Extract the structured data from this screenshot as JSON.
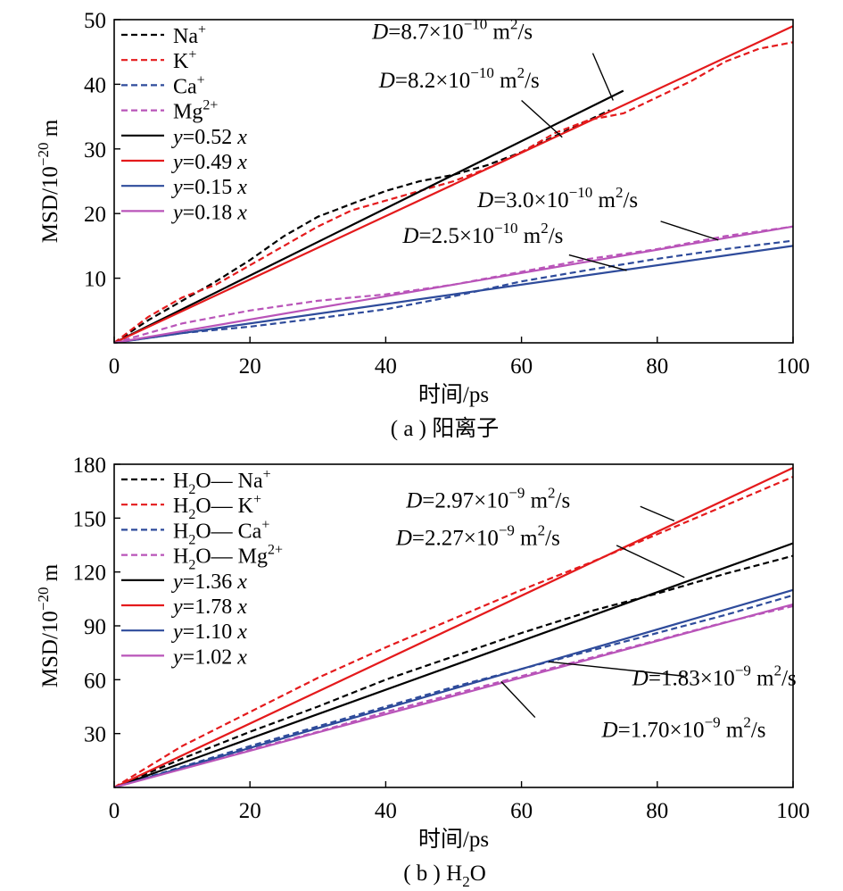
{
  "chart_data": [
    {
      "type": "line",
      "caption": "( a ) 阳离子",
      "xlabel": "时间/ps",
      "ylabel": "MSD/10−20 m",
      "ylabel_main": "MSD/10",
      "ylabel_sup": "−20",
      "ylabel_tail": " m",
      "xlim": [
        0,
        100
      ],
      "ylim": [
        0,
        50
      ],
      "xticks": [
        0,
        20,
        40,
        60,
        80,
        100
      ],
      "yticks": [
        10,
        20,
        30,
        40,
        50
      ],
      "legend_position": "top-left",
      "grid": false,
      "series": [
        {
          "name": "Na+",
          "base": "Na",
          "sup": "+",
          "style": "dashed",
          "color": "#000000",
          "x": [
            0,
            5,
            10,
            15,
            20,
            25,
            30,
            35,
            40,
            45,
            50,
            55,
            60,
            65,
            70,
            73
          ],
          "y": [
            0,
            3.5,
            6.5,
            9.5,
            12.8,
            16.5,
            19.5,
            21.5,
            23.5,
            25,
            26,
            27.5,
            29.5,
            32,
            34.5,
            36
          ]
        },
        {
          "name": "K+",
          "base": "K",
          "sup": "+",
          "style": "dashed",
          "color": "#e41a1c",
          "x": [
            0,
            5,
            10,
            15,
            20,
            25,
            30,
            35,
            40,
            45,
            50,
            55,
            60,
            65,
            70,
            75,
            80,
            85,
            90,
            95,
            100
          ],
          "y": [
            0,
            4,
            7,
            9,
            12,
            15,
            18,
            20.5,
            22,
            23.5,
            25,
            27,
            29.5,
            32.5,
            34.5,
            35.5,
            38,
            40.5,
            43.5,
            45.5,
            46.5
          ]
        },
        {
          "name": "Ca+",
          "base": "Ca",
          "sup": "+",
          "style": "dashed",
          "color": "#2e4b9b",
          "x": [
            0,
            10,
            20,
            30,
            40,
            50,
            60,
            70,
            80,
            90,
            100
          ],
          "y": [
            0,
            1.5,
            2.5,
            3.8,
            5.2,
            7.2,
            9.5,
            11.3,
            13,
            14.5,
            15.8
          ]
        },
        {
          "name": "Mg2+",
          "base": "Mg",
          "sup": "2+",
          "style": "dashed",
          "color": "#b954b9",
          "x": [
            0,
            10,
            20,
            30,
            40,
            50,
            60,
            70,
            80,
            90,
            100
          ],
          "y": [
            0,
            3,
            5,
            6.5,
            7.5,
            9,
            11,
            13,
            14.5,
            16.5,
            18
          ]
        },
        {
          "name": "y=0.52 x",
          "coef": "=0.52 ",
          "style": "solid",
          "color": "#000000",
          "x": [
            0,
            75
          ],
          "y": [
            0,
            39
          ]
        },
        {
          "name": "y=0.49 x",
          "coef": "=0.49 ",
          "style": "solid",
          "color": "#e41a1c",
          "x": [
            0,
            100
          ],
          "y": [
            0,
            49
          ]
        },
        {
          "name": "y=0.15 x",
          "coef": "=0.15 ",
          "style": "solid",
          "color": "#2e4b9b",
          "x": [
            0,
            100
          ],
          "y": [
            0,
            15
          ]
        },
        {
          "name": "y=0.18 x",
          "coef": "=0.18 ",
          "style": "solid",
          "color": "#b954b9",
          "x": [
            0,
            100
          ],
          "y": [
            0,
            18
          ]
        }
      ],
      "annotations": [
        {
          "text": "D=8.7×10−10 m2/s",
          "mant": "=8.7×10",
          "exp": "−10",
          "unit": " m",
          "usup": "2",
          "tail": "/s",
          "tx": 38,
          "ty": 47,
          "anchor": "start",
          "lx1": 70.5,
          "ly1": 44.8,
          "lx2": 73.5,
          "ly2": 37.5
        },
        {
          "text": "D=8.2×10−10 m2/s",
          "mant": "=8.2×10",
          "exp": "−10",
          "unit": " m",
          "usup": "2",
          "tail": "/s",
          "tx": 39,
          "ty": 39.5,
          "anchor": "start",
          "lx1": 60,
          "ly1": 37.5,
          "lx2": 66,
          "ly2": 31.8
        },
        {
          "text": "D=3.0×10−10 m2/s",
          "mant": "=3.0×10",
          "exp": "−10",
          "unit": " m",
          "usup": "2",
          "tail": "/s",
          "tx": 53.5,
          "ty": 21,
          "anchor": "start",
          "lx1": 80.5,
          "ly1": 18.8,
          "lx2": 89,
          "ly2": 15.9
        },
        {
          "text": "D=2.5×10−10 m2/s",
          "mant": "=2.5×10",
          "exp": "−10",
          "unit": " m",
          "usup": "2",
          "tail": "/s",
          "tx": 42.5,
          "ty": 15.5,
          "anchor": "start",
          "lx1": 67,
          "ly1": 13.6,
          "lx2": 75.5,
          "ly2": 11.2
        }
      ]
    },
    {
      "type": "line",
      "caption": "( b ) H2O",
      "caption_main": "( b ) H",
      "caption_sub": "2",
      "caption_tail": "O",
      "xlabel": "时间/ps",
      "ylabel": "MSD/10−20 m",
      "ylabel_main": "MSD/10",
      "ylabel_sup": "−20",
      "ylabel_tail": " m",
      "xlim": [
        0,
        100
      ],
      "ylim": [
        0,
        180
      ],
      "xticks": [
        0,
        20,
        40,
        60,
        80,
        100
      ],
      "yticks": [
        30,
        60,
        90,
        120,
        150,
        180
      ],
      "legend_position": "top-left",
      "grid": false,
      "series": [
        {
          "name": "H2O—Na+",
          "ion": "Na",
          "sup": "+",
          "style": "dashed",
          "color": "#000000",
          "x": [
            0,
            10,
            20,
            30,
            40,
            50,
            60,
            70,
            80,
            90,
            100
          ],
          "y": [
            0,
            16,
            31,
            45,
            60,
            73,
            86,
            98,
            108,
            119,
            129
          ]
        },
        {
          "name": "H2O—K+",
          "ion": "K",
          "sup": "+",
          "style": "dashed",
          "color": "#e41a1c",
          "x": [
            0,
            10,
            20,
            30,
            40,
            50,
            60,
            70,
            80,
            90,
            100
          ],
          "y": [
            0,
            23,
            42,
            61,
            78,
            94,
            110,
            125,
            141,
            157,
            173
          ]
        },
        {
          "name": "H2O—Ca+",
          "ion": "Ca",
          "sup": "+",
          "style": "dashed",
          "color": "#2e4b9b",
          "x": [
            0,
            10,
            20,
            30,
            40,
            50,
            60,
            70,
            80,
            90,
            100
          ],
          "y": [
            0,
            11.5,
            23,
            34,
            45,
            56,
            66,
            76,
            86,
            96,
            107
          ]
        },
        {
          "name": "H2O—Mg2+",
          "ion": "Mg",
          "sup": "2+",
          "style": "dashed",
          "color": "#b954b9",
          "x": [
            0,
            10,
            20,
            30,
            40,
            50,
            60,
            70,
            80,
            90,
            100
          ],
          "y": [
            0,
            10.5,
            21,
            31,
            42,
            52,
            62,
            72,
            82,
            92,
            101
          ]
        },
        {
          "name": "y=1.36 x",
          "coef": "=1.36 ",
          "style": "solid",
          "color": "#000000",
          "x": [
            0,
            100
          ],
          "y": [
            0,
            136
          ]
        },
        {
          "name": "y=1.78 x",
          "coef": "=1.78 ",
          "style": "solid",
          "color": "#e41a1c",
          "x": [
            0,
            100
          ],
          "y": [
            0,
            178
          ]
        },
        {
          "name": "y=1.10 x",
          "coef": "=1.10 ",
          "style": "solid",
          "color": "#2e4b9b",
          "x": [
            0,
            100
          ],
          "y": [
            0,
            110
          ]
        },
        {
          "name": "y=1.02 x",
          "coef": "=1.02 ",
          "style": "solid",
          "color": "#b954b9",
          "x": [
            0,
            100
          ],
          "y": [
            0,
            102
          ]
        }
      ],
      "annotations": [
        {
          "text": "D=2.97×10−9 m2/s",
          "mant": "=2.97×10",
          "exp": "−9",
          "unit": " m",
          "usup": "2",
          "tail": "/s",
          "tx": 43,
          "ty": 156,
          "anchor": "start",
          "lx1": 77.5,
          "ly1": 156.5,
          "lx2": 82.5,
          "ly2": 148.5
        },
        {
          "text": "D=2.27×10−9 m2/s",
          "mant": "=2.27×10",
          "exp": "−9",
          "unit": " m",
          "usup": "2",
          "tail": "/s",
          "tx": 41.5,
          "ty": 135,
          "anchor": "start",
          "lx1": 74,
          "ly1": 134.8,
          "lx2": 84,
          "ly2": 117
        }
      ]
    }
  ],
  "extra_annotations": [
    {
      "text": "D=1.83×10−9 m2/s",
      "mant": "=1.83×10",
      "exp": "−9",
      "unit": " m",
      "usup": "2",
      "tail": "/s",
      "tx": 100.5,
      "ty": 57,
      "anchor": "end",
      "lx1": 84,
      "ly1": 62,
      "lx2": 64,
      "ly2": 70
    },
    {
      "text": "D=1.70×10−9 m2/s",
      "mant": "=1.70×10",
      "exp": "−9",
      "unit": " m",
      "usup": "2",
      "tail": "/s",
      "tx": 96,
      "ty": 28,
      "anchor": "end",
      "lx1": 62,
      "ly1": 39,
      "lx2": 57,
      "ly2": 59
    }
  ]
}
